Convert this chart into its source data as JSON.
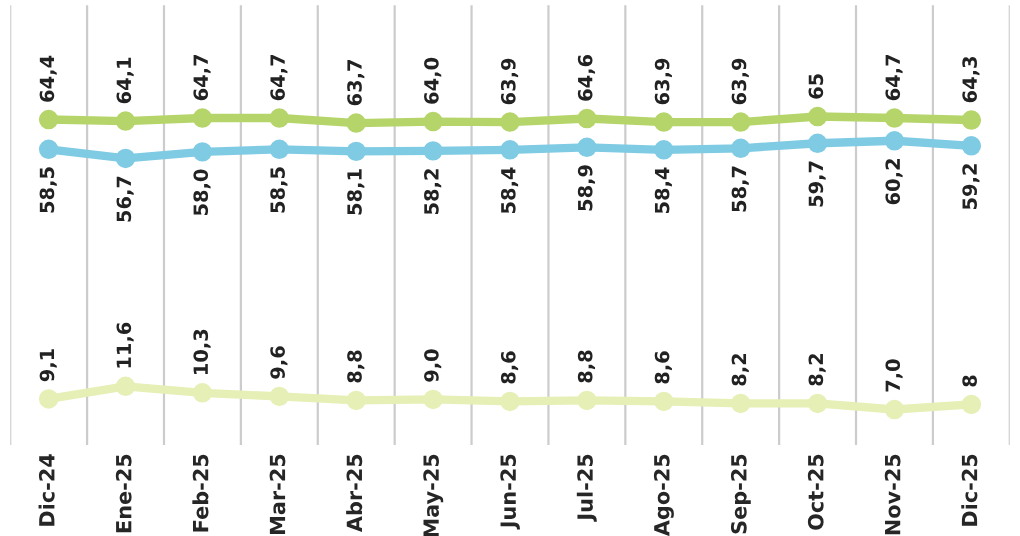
{
  "chart_data": {
    "type": "line",
    "categories": [
      "Dic-24",
      "Ene-25",
      "Feb-25",
      "Mar-25",
      "Abr-25",
      "May-25",
      "Jun-25",
      "Jul-25",
      "Ago-25",
      "Sep-25",
      "Oct-25",
      "Nov-25",
      "Dic-25"
    ],
    "series": [
      {
        "color": "#b5d56a",
        "values": [
          64.4,
          64.1,
          64.7,
          64.7,
          63.7,
          64.0,
          63.9,
          64.6,
          63.9,
          63.9,
          65,
          64.7,
          64.3
        ],
        "value_labels": [
          "64,4",
          "64,1",
          "64,7",
          "64,7",
          "63,7",
          "64,0",
          "63,9",
          "64,6",
          "63,9",
          "63,9",
          "65",
          "64,7",
          "64,3"
        ]
      },
      {
        "color": "#7fcbe3",
        "values": [
          58.5,
          56.7,
          58.0,
          58.5,
          58.1,
          58.2,
          58.4,
          58.9,
          58.4,
          58.7,
          59.7,
          60.2,
          59.2
        ],
        "value_labels": [
          "58,5",
          "56,7",
          "58,0",
          "58,5",
          "58,1",
          "58,2",
          "58,4",
          "58,9",
          "58,4",
          "58,7",
          "59,7",
          "60,2",
          "59,2"
        ]
      },
      {
        "color": "#e6efb5",
        "values": [
          9.1,
          11.6,
          10.3,
          9.6,
          8.8,
          9.0,
          8.6,
          8.8,
          8.6,
          8.2,
          8.2,
          7.0,
          8
        ],
        "value_labels": [
          "9,1",
          "11,6",
          "10,3",
          "9,6",
          "8,8",
          "9,0",
          "8,6",
          "8,8",
          "8,6",
          "8,2",
          "8,2",
          "7,0",
          "8"
        ]
      }
    ],
    "ylim": [
      0,
      87
    ],
    "tick_labels": "x",
    "grid": "x",
    "marker": "circle",
    "line_style": "solid",
    "legend": false
  }
}
